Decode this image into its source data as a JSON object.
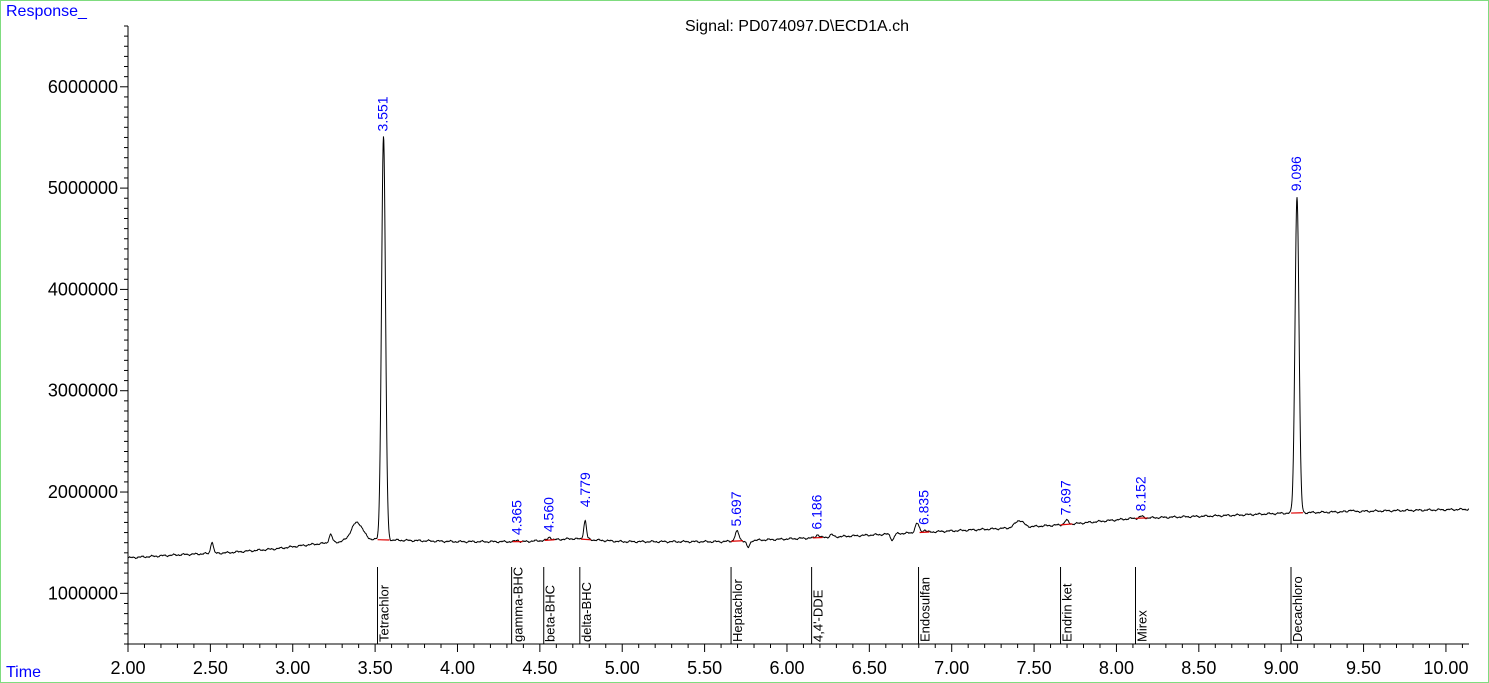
{
  "chart_data": {
    "type": "line",
    "title": "Signal: PD074097.D\\ECD1A.ch",
    "ylabel": "Response_",
    "xlabel": "Time",
    "xlim": [
      2.0,
      10.14
    ],
    "ylim": [
      500000,
      6600000
    ],
    "x_ticks": [
      "2.00",
      "2.50",
      "3.00",
      "3.50",
      "4.00",
      "4.50",
      "5.00",
      "5.50",
      "6.00",
      "6.50",
      "7.00",
      "7.50",
      "8.00",
      "8.50",
      "9.00",
      "9.50",
      "10.00"
    ],
    "y_ticks": [
      "1000000",
      "2000000",
      "3000000",
      "4000000",
      "5000000",
      "6000000"
    ],
    "baseline": [
      [
        2.0,
        1350000
      ],
      [
        2.3,
        1380000
      ],
      [
        2.6,
        1400000
      ],
      [
        2.9,
        1440000
      ],
      [
        3.1,
        1480000
      ],
      [
        3.3,
        1510000
      ],
      [
        3.5,
        1530000
      ],
      [
        4.0,
        1510000
      ],
      [
        4.4,
        1510000
      ],
      [
        4.7,
        1540000
      ],
      [
        5.0,
        1510000
      ],
      [
        5.6,
        1510000
      ],
      [
        6.2,
        1550000
      ],
      [
        6.8,
        1600000
      ],
      [
        7.3,
        1640000
      ],
      [
        7.7,
        1680000
      ],
      [
        8.1,
        1740000
      ],
      [
        8.7,
        1770000
      ],
      [
        9.0,
        1790000
      ],
      [
        9.5,
        1810000
      ],
      [
        10.14,
        1830000
      ]
    ],
    "peaks": [
      {
        "rt": 2.51,
        "height": 1510000,
        "width": 0.008,
        "labeled": false
      },
      {
        "rt": 3.23,
        "height": 1580000,
        "width": 0.01,
        "labeled": false
      },
      {
        "rt": 3.39,
        "height": 1700000,
        "width": 0.035,
        "labeled": false
      },
      {
        "rt": 3.551,
        "height": 5510000,
        "width": 0.012,
        "label": "3.551",
        "compound": "Tetrachlor"
      },
      {
        "rt": 4.365,
        "height": 1525000,
        "width": 0.01,
        "label": "4.365",
        "compound": "gamma-BHC"
      },
      {
        "rt": 4.56,
        "height": 1555000,
        "width": 0.01,
        "label": "4.560",
        "compound": "beta-BHC"
      },
      {
        "rt": 4.779,
        "height": 1800000,
        "width": 0.01,
        "label": "4.779",
        "compound": "delta-BHC"
      },
      {
        "rt": 5.697,
        "height": 1610000,
        "width": 0.012,
        "label": "5.697",
        "compound": "Heptachlor"
      },
      {
        "rt": 6.186,
        "height": 1580000,
        "width": 0.01,
        "label": "6.186",
        "compound": "4,4'-DDE"
      },
      {
        "rt": 6.27,
        "height": 1580000,
        "width": 0.01,
        "labeled": false
      },
      {
        "rt": 6.79,
        "height": 1690000,
        "width": 0.012,
        "labeled": false
      },
      {
        "rt": 6.835,
        "height": 1625000,
        "width": 0.01,
        "label": "6.835",
        "compound": "Endosulfan"
      },
      {
        "rt": 7.41,
        "height": 1720000,
        "width": 0.025,
        "labeled": false
      },
      {
        "rt": 7.697,
        "height": 1720000,
        "width": 0.012,
        "label": "7.697",
        "compound": "Endrin ket"
      },
      {
        "rt": 8.152,
        "height": 1760000,
        "width": 0.012,
        "label": "8.152",
        "compound": "Mirex"
      },
      {
        "rt": 9.096,
        "height": 4920000,
        "width": 0.012,
        "label": "9.096",
        "compound": "Decachloro"
      },
      {
        "rt": 9.42,
        "height": 1825000,
        "width": 0.01,
        "labeled": false
      }
    ],
    "dips": [
      {
        "rt": 4.785,
        "depth": 140000,
        "width": 0.008
      },
      {
        "rt": 5.765,
        "depth": 70000,
        "width": 0.01
      },
      {
        "rt": 6.64,
        "depth": 60000,
        "width": 0.01
      }
    ]
  },
  "colors": {
    "trace": "#000000",
    "integration": "#e00000",
    "labels": "#0000ff",
    "frame": "#7fdc7f"
  }
}
